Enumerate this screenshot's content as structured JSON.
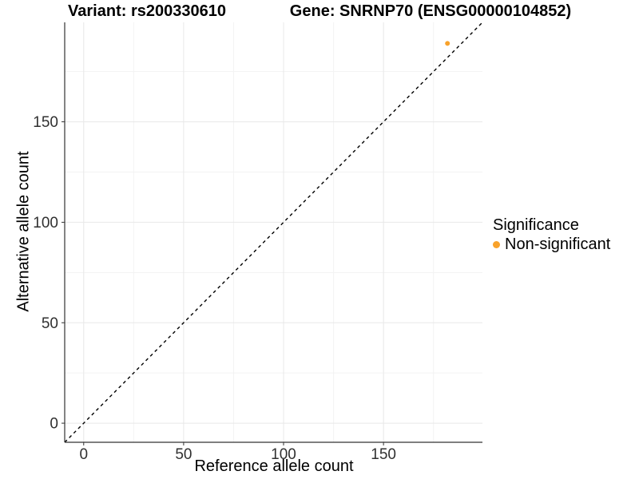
{
  "chart_data": {
    "type": "scatter",
    "title_left": "Variant: rs200330610",
    "title_right": "Gene: SNRNP70 (ENSG00000104852)",
    "xlabel": "Reference allele count",
    "ylabel": "Alternative allele count",
    "xlim": [
      -9.5,
      199.5
    ],
    "ylim": [
      -9.5,
      199.5
    ],
    "x_ticks": [
      0,
      50,
      100,
      150
    ],
    "y_ticks": [
      0,
      50,
      100,
      150
    ],
    "x_minor_ticks": [
      25,
      75,
      125,
      175
    ],
    "y_minor_ticks": [
      25,
      75,
      125,
      175
    ],
    "grid": true,
    "reference_line": {
      "style": "dashed",
      "equation": "y = x",
      "color": "#000000"
    },
    "series": [
      {
        "name": "Non-significant",
        "color": "#F8A22B",
        "points": [
          {
            "x": 182,
            "y": 189
          }
        ]
      }
    ],
    "legend": {
      "title": "Significance",
      "position": "right",
      "items": [
        {
          "label": "Non-significant",
          "color": "#F8A22B"
        }
      ]
    },
    "colors": {
      "background": "#FFFFFF",
      "grid_major": "#E8E8E8",
      "grid_minor": "#F3F3F3",
      "axis_line": "#333333",
      "tick_mark": "#333333",
      "tick_label": "#303030"
    }
  }
}
